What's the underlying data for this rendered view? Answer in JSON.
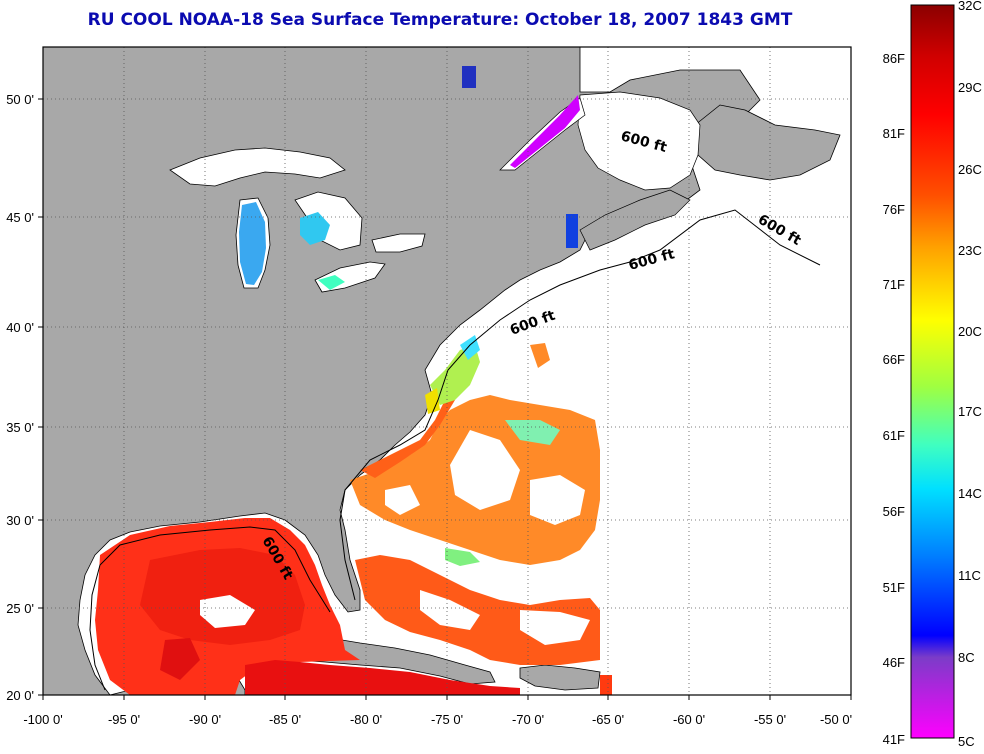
{
  "title": "RU COOL  NOAA-18  Sea Surface Temperature:  October 18, 2007 1843 GMT",
  "map": {
    "extent": {
      "lon": [
        -100,
        -50
      ],
      "lat": [
        20,
        52.5
      ]
    },
    "grid": true,
    "colors": {
      "land": "#a8a8a8",
      "no_data": "#ffffff",
      "border": "#000000",
      "grid": "#555555"
    },
    "lon_ticks": [
      "-100 0'",
      "-95 0'",
      "-90 0'",
      "-85 0'",
      "-80 0'",
      "-75 0'",
      "-70 0'",
      "-65 0'",
      "-60 0'",
      "-55 0'",
      "-50 0'"
    ],
    "lat_ticks": [
      "20 0'",
      "25 0'",
      "30 0'",
      "35 0'",
      "40 0'",
      "45 0'",
      "50 0'"
    ],
    "contour_labels": [
      "600 ft",
      "600 ft",
      "600 ft",
      "600 ft",
      "600 ft"
    ]
  },
  "colorbar": {
    "range_c": [
      5,
      32
    ],
    "fahrenheit_labels": [
      "86F",
      "81F",
      "76F",
      "71F",
      "66F",
      "61F",
      "56F",
      "51F",
      "46F",
      "41F"
    ],
    "celsius_labels": [
      "32C",
      "29C",
      "26C",
      "23C",
      "20C",
      "17C",
      "14C",
      "11C",
      "8C",
      "5C"
    ],
    "stops": [
      "#ff00ff",
      "#c020e0",
      "#7b3cc8",
      "#0000ff",
      "#0080ff",
      "#00e0ff",
      "#40ffc0",
      "#a0ff40",
      "#ffff00",
      "#ffa000",
      "#ff5000",
      "#ff0000",
      "#d00000",
      "#8b0000"
    ]
  }
}
